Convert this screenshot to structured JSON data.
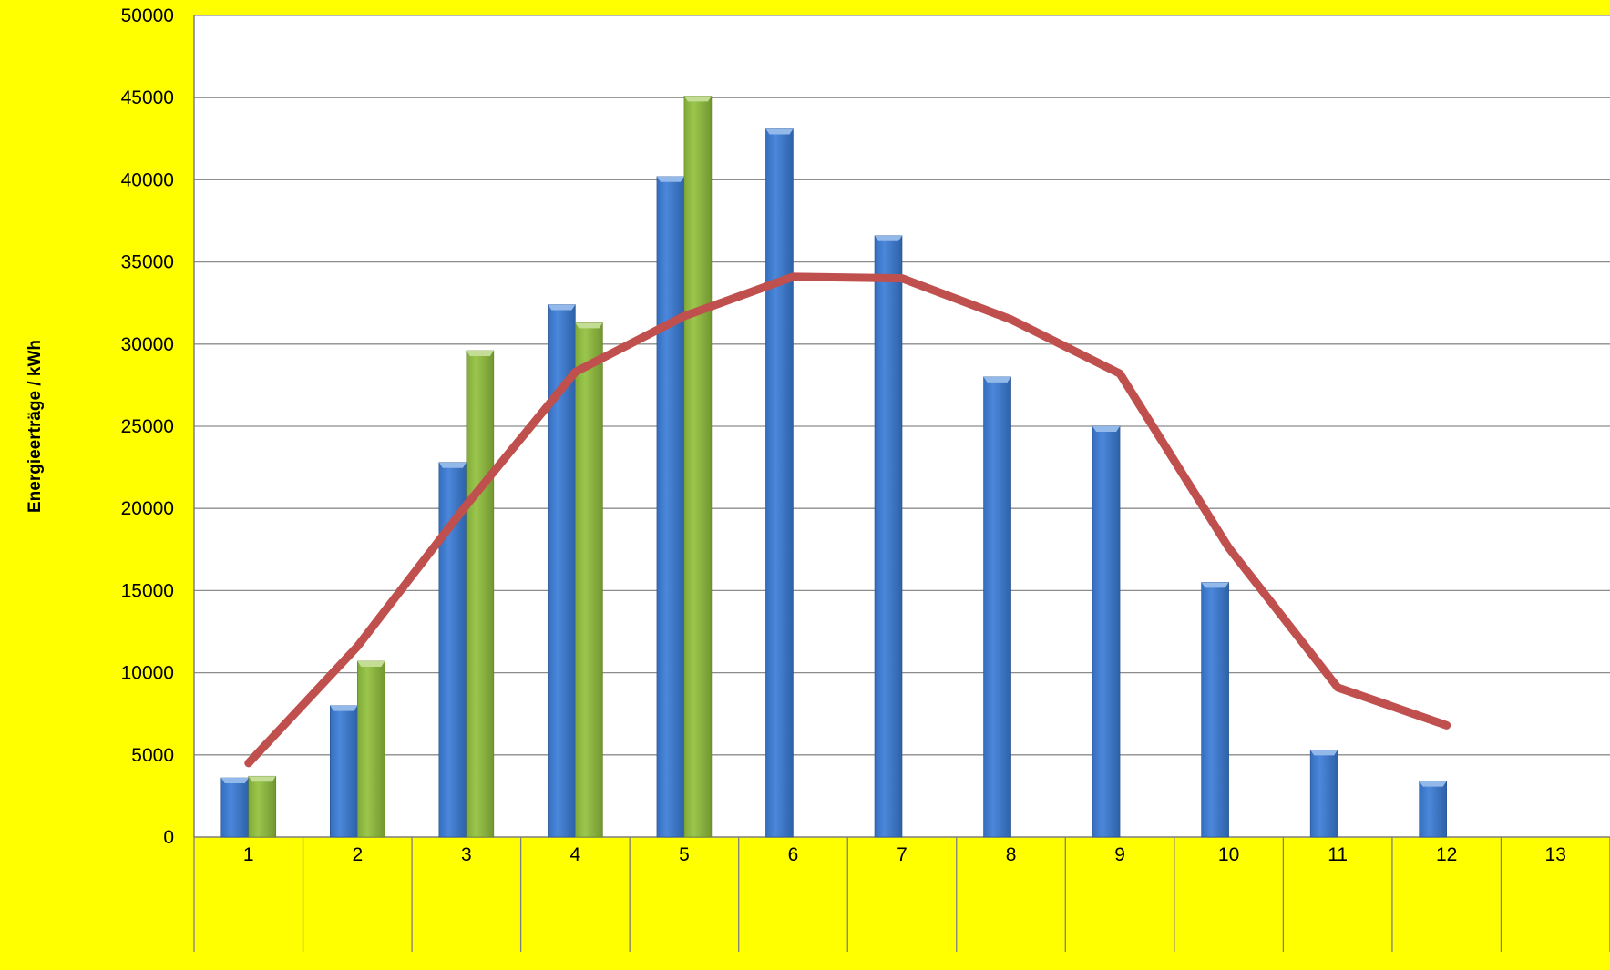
{
  "chart_data": {
    "type": "bar",
    "title": "",
    "xlabel": "",
    "ylabel": "Energieerträge / kWh",
    "ylim": [
      0,
      50000
    ],
    "yticks": [
      0,
      5000,
      10000,
      15000,
      20000,
      25000,
      30000,
      35000,
      40000,
      45000,
      50000
    ],
    "categories": [
      "1",
      "2",
      "3",
      "4",
      "5",
      "6",
      "7",
      "8",
      "9",
      "10",
      "11",
      "12",
      "13"
    ],
    "grid": true,
    "legend": "none",
    "series": [
      {
        "type": "bar",
        "color": "#3B7DD8",
        "values": [
          3600,
          8000,
          22800,
          32400,
          40200,
          43100,
          36600,
          28000,
          25000,
          15500,
          5300,
          3400,
          null
        ]
      },
      {
        "type": "bar",
        "color": "#92C13E",
        "values": [
          3700,
          10700,
          29600,
          31300,
          45100,
          null,
          null,
          null,
          null,
          null,
          null,
          null,
          null
        ]
      },
      {
        "type": "line",
        "color": "#C0504D",
        "values": [
          4500,
          11600,
          20200,
          28300,
          31700,
          34100,
          34000,
          31500,
          28200,
          17600,
          9100,
          6800,
          null
        ]
      }
    ],
    "colors": {
      "background": "#FFFF00",
      "plot_area": "#FFFFFF",
      "gridline": "#8C8C8C",
      "axis_line": "#7F7F7F"
    }
  }
}
